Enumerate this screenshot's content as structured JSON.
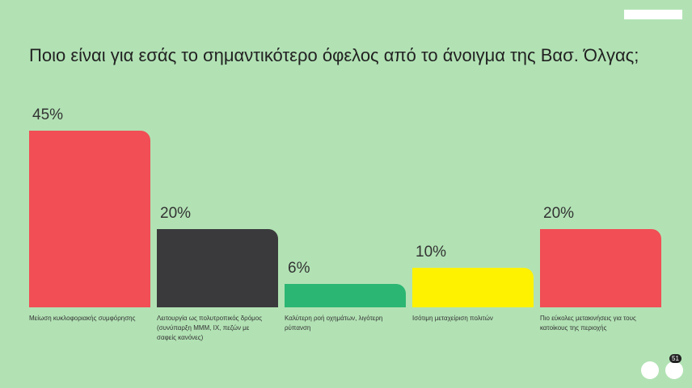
{
  "chart_data": {
    "type": "bar",
    "title": "Ποιο είναι για εσάς το σημαντικότερο όφελος από το άνοιγμα της Βασ. Όλγας;",
    "categories": [
      "Μείωση κυκλοφοριακής συμφόρησης",
      "Λειτουργία ως πολυτροπικός δρόμος (συνύπαρξη ΜΜΜ, ΙΧ, πεζών με σαφείς κανόνες)",
      "Καλύτερη ροή οχημάτων, λιγότερη ρύπανση",
      "Ισότιμη μεταχείριση πολιτών",
      "Πιο εύκολες μετακινήσεις για τους κατοίκους της περιοχής"
    ],
    "values": [
      45,
      20,
      6,
      10,
      20
    ],
    "value_labels": [
      "45%",
      "20%",
      "6%",
      "10%",
      "20%"
    ],
    "colors": [
      "#f14e55",
      "#3a3a3c",
      "#2bb673",
      "#fff200",
      "#f14e55"
    ]
  },
  "footer": {
    "participants": 51
  }
}
